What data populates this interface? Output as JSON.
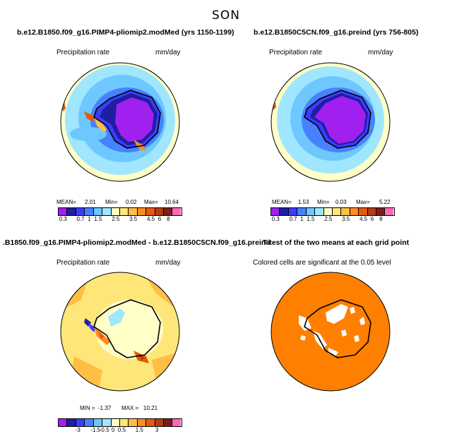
{
  "title": "SON",
  "panels": [
    {
      "title": "b.e12.B1850.f09_g16.PIMP4-pliomip2.modMed (yrs 1150-1199)",
      "variable": "Precipitation rate",
      "units": "mm/day",
      "stats": {
        "mean": "MEAN=",
        "mean_val": "2.01",
        "min": "Min=",
        "min_val": "0.02",
        "max": "Max=",
        "max_val": "10.64"
      },
      "colorbar": {
        "colors": [
          "#a020f0",
          "#1e1ea0",
          "#3c3cff",
          "#4682ff",
          "#6ec8ff",
          "#a0e6ff",
          "#ffffc8",
          "#ffe678",
          "#ffbe46",
          "#ff8c1e",
          "#e65a0a",
          "#b43c14",
          "#7d1e1e",
          "#ff69b4"
        ],
        "labels": [
          "0.3",
          "0.7",
          "1",
          "1.5",
          "2.5",
          "3.5",
          "4.5",
          "6",
          "8"
        ]
      }
    },
    {
      "title": "b.e12.B1850C5CN.f09_g16.preind (yrs 756-805)",
      "variable": "Precipitation rate",
      "units": "mm/day",
      "stats": {
        "mean": "MEAN=",
        "mean_val": "1.53",
        "min": "Min=",
        "min_val": "0.03",
        "max": "Max=",
        "max_val": "5.22"
      },
      "colorbar": {
        "colors": [
          "#a020f0",
          "#1e1ea0",
          "#3c3cff",
          "#4682ff",
          "#6ec8ff",
          "#a0e6ff",
          "#ffffc8",
          "#ffe678",
          "#ffbe46",
          "#ff8c1e",
          "#e65a0a",
          "#b43c14",
          "#7d1e1e",
          "#ff69b4"
        ],
        "labels": [
          "0.3",
          "0.7",
          "1",
          "1.5",
          "2.5",
          "3.5",
          "4.5",
          "6",
          "8"
        ]
      }
    },
    {
      "title": ".B1850.f09_g16.PIMP4-pliomip2.modMed - b.e12.B1850C5CN.f09_g16.preind",
      "variable": "Precipitation rate",
      "units": "mm/day",
      "stats": {
        "min": "MIN =",
        "min_val": "-1.37",
        "max": "MAX =",
        "max_val": "10.21"
      },
      "colorbar": {
        "colors": [
          "#a020f0",
          "#1e1ea0",
          "#3c3cff",
          "#4682ff",
          "#6ec8ff",
          "#a0e6ff",
          "#ffffc8",
          "#ffe678",
          "#ffbe46",
          "#ff8c1e",
          "#e65a0a",
          "#b43c14",
          "#7d1e1e",
          "#ff69b4"
        ],
        "labels": [
          "-3",
          "-1.5",
          "-0.5",
          "0",
          "0.5",
          "1.5",
          "3"
        ]
      }
    },
    {
      "title": "T-test of the two means at each grid point",
      "caption": "Colored cells are significant at the 0.05 level"
    }
  ]
}
